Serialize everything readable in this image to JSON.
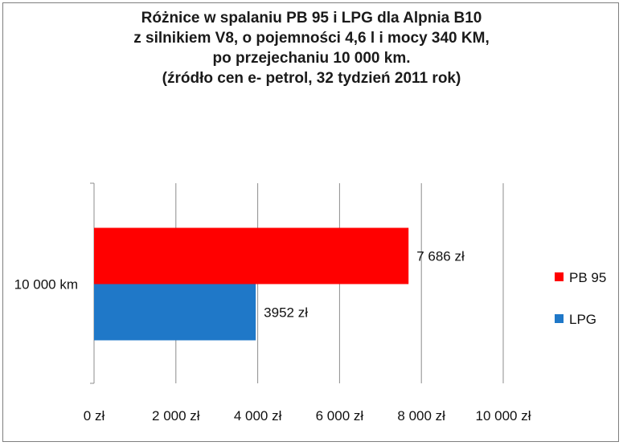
{
  "chart_data": {
    "type": "bar",
    "orientation": "horizontal",
    "title_lines": [
      "Różnice w spalaniu PB 95 i LPG dla Alpnia B10",
      "z silnikiem V8, o pojemności 4,6 l i mocy 340 KM,",
      "po przejechaniu 10 000 km.",
      "(źródło cen e- petrol, 32 tydzień 2011 rok)"
    ],
    "categories": [
      "10 000 km"
    ],
    "series": [
      {
        "name": "PB 95",
        "values": [
          7686
        ],
        "label": "7 686 zł",
        "color": "#ff0000"
      },
      {
        "name": "LPG",
        "values": [
          3952
        ],
        "label": "3952 zł",
        "color": "#1f78c8"
      }
    ],
    "xlim": [
      0,
      10000
    ],
    "x_ticks": [
      0,
      2000,
      4000,
      6000,
      8000,
      10000
    ],
    "x_tick_labels": [
      "0 zł",
      "2 000 zł",
      "4 000 zł",
      "6 000 zł",
      "8 000 zł",
      "10 000 zł"
    ],
    "grid": "vertical",
    "legend": "right"
  }
}
